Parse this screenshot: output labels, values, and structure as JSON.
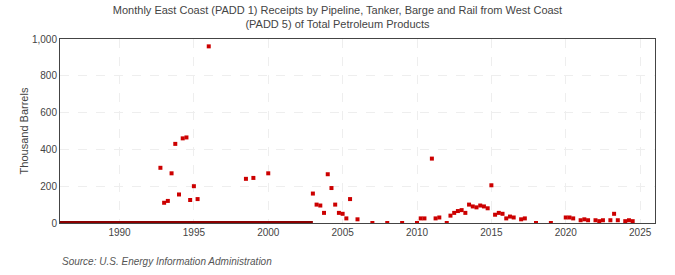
{
  "chart_data": {
    "type": "scatter",
    "title": "Monthly East Coast (PADD 1) Receipts by Pipeline, Tanker, Barge and Rail from West Coast\n(PADD 5) of Total Petroleum Products",
    "ylabel": "Thousand Barrels",
    "annotations": [
      "Source: U.S. Energy Information Administration"
    ],
    "xlim": [
      1986,
      2026
    ],
    "ylim": [
      0,
      1000
    ],
    "xticks": [
      1990,
      1995,
      2000,
      2005,
      2010,
      2015,
      2020,
      2025
    ],
    "yticks": [
      0,
      200,
      400,
      600,
      800,
      {
        "value": 1000,
        "label": "1,000"
      }
    ],
    "grid": true,
    "series": [
      {
        "type": "scatter",
        "color": "#cc0000",
        "marker": "square",
        "x": [
          1986.5,
          1987.0,
          1987.5,
          1988.0,
          1988.5,
          1989.0,
          1989.5,
          1990.0,
          1990.5,
          1991.0,
          1991.5,
          1992.0,
          1992.5,
          1992.75,
          1993.0,
          1993.25,
          1993.5,
          1993.75,
          1994.0,
          1994.25,
          1994.5,
          1994.75,
          1995.0,
          1995.25,
          1996.0,
          1997.0,
          1997.5,
          1998.0,
          1998.5,
          1999.0,
          2000.0,
          2001.0,
          2001.5,
          2002.0,
          2003.0,
          2003.25,
          2003.5,
          2003.75,
          2004.0,
          2004.25,
          2004.5,
          2004.75,
          2005.0,
          2005.25,
          2005.5,
          2006.0,
          2007.0,
          2008.0,
          2009.0,
          2010.0,
          2010.25,
          2010.5,
          2011.0,
          2011.25,
          2011.5,
          2012.0,
          2012.25,
          2012.5,
          2012.75,
          2013.0,
          2013.25,
          2013.5,
          2013.75,
          2014.0,
          2014.25,
          2014.5,
          2014.75,
          2015.0,
          2015.25,
          2015.5,
          2015.75,
          2016.0,
          2016.25,
          2016.5,
          2017.0,
          2017.25,
          2018.0,
          2019.0,
          2020.0,
          2020.25,
          2020.5,
          2021.0,
          2021.25,
          2021.5,
          2022.0,
          2022.25,
          2022.5,
          2023.0,
          2023.25,
          2023.5,
          2024.0,
          2024.25,
          2024.5
        ],
        "values": [
          0,
          0,
          0,
          0,
          0,
          0,
          0,
          0,
          0,
          0,
          0,
          0,
          0,
          300,
          110,
          120,
          270,
          430,
          155,
          460,
          465,
          125,
          200,
          130,
          960,
          0,
          0,
          0,
          240,
          245,
          270,
          0,
          0,
          0,
          160,
          100,
          95,
          55,
          265,
          190,
          100,
          55,
          50,
          25,
          130,
          20,
          0,
          0,
          0,
          0,
          25,
          25,
          350,
          25,
          30,
          0,
          40,
          55,
          65,
          70,
          55,
          100,
          90,
          85,
          95,
          90,
          80,
          205,
          45,
          55,
          50,
          25,
          35,
          30,
          20,
          25,
          0,
          0,
          30,
          30,
          25,
          15,
          20,
          15,
          15,
          10,
          15,
          15,
          50,
          15,
          10,
          15,
          10
        ]
      },
      {
        "type": "line",
        "color": "#8b0000",
        "line_style": "solid",
        "x": [
          1986,
          2003.0
        ],
        "values": [
          0,
          0
        ]
      }
    ]
  }
}
